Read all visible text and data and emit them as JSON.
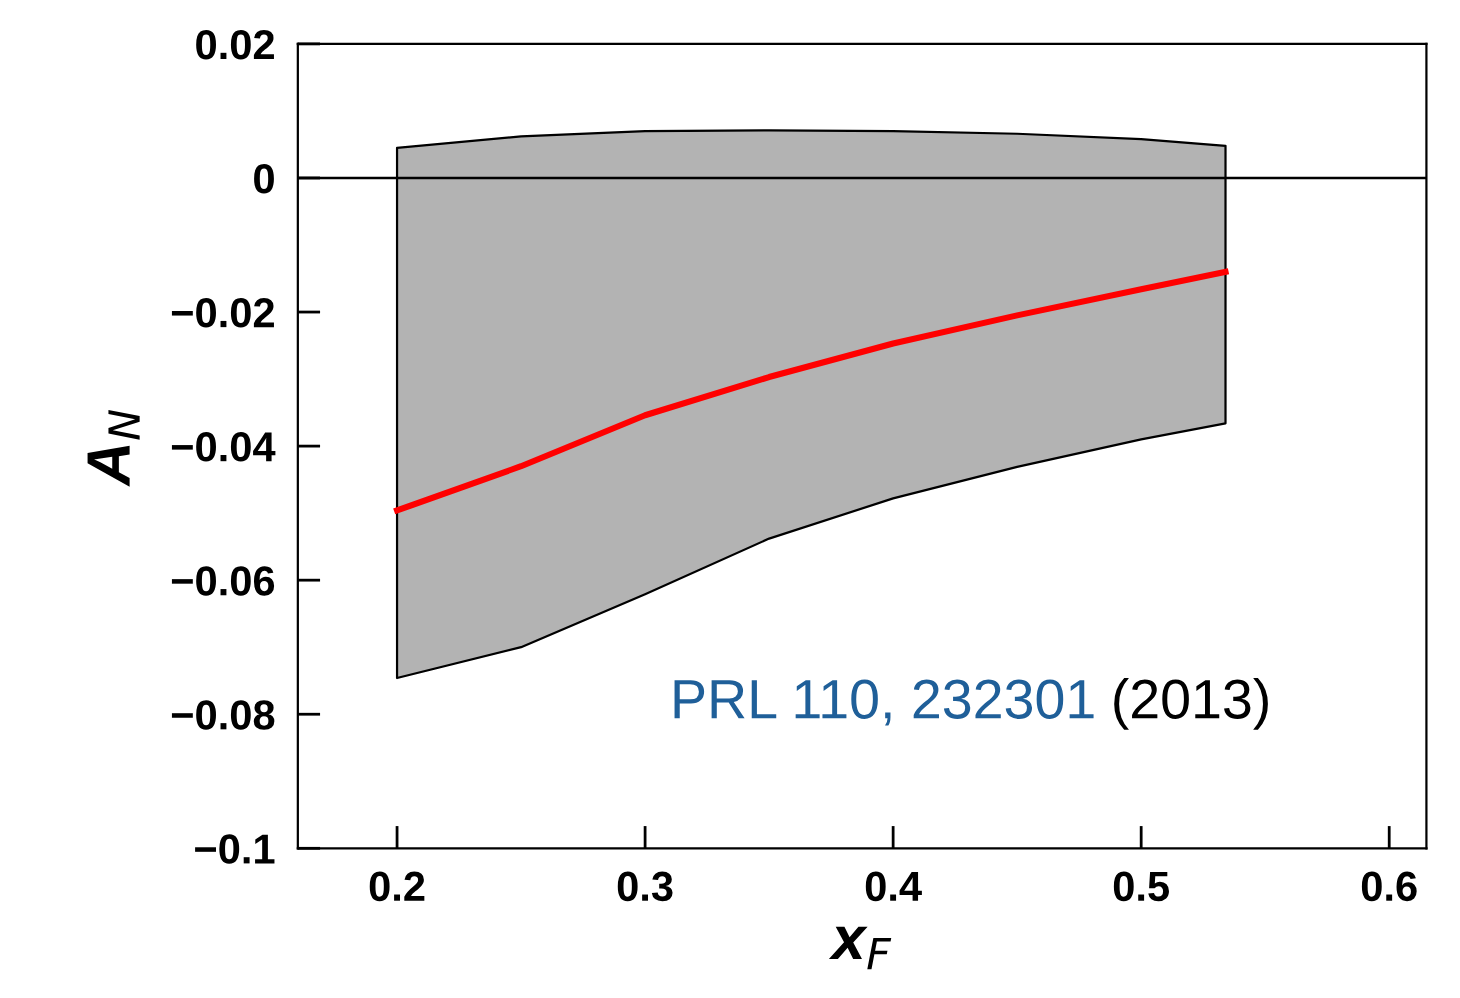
{
  "chart_data": {
    "type": "line",
    "xlabel": "x$_{F}$",
    "ylabel": "A$_{N}$",
    "x": [
      0.2,
      0.25,
      0.3,
      0.35,
      0.4,
      0.45,
      0.5,
      0.534
    ],
    "series": [
      {
        "color": "#ff0000",
        "values": [
          -0.0496,
          -0.043,
          -0.0354,
          -0.0297,
          -0.0247,
          -0.0205,
          -0.0166,
          -0.014
        ],
        "lower": [
          -0.0746,
          -0.07,
          -0.0621,
          -0.0538,
          -0.0478,
          -0.0431,
          -0.039,
          -0.0366
        ],
        "upper": [
          0.0045,
          0.0062,
          0.007,
          0.0071,
          0.007,
          0.0066,
          0.0058,
          0.0048
        ]
      }
    ],
    "xlim": [
      0.16,
      0.615
    ],
    "ylim": [
      -0.1,
      0.02
    ],
    "xticks": [
      0.2,
      0.3,
      0.4,
      0.5,
      0.6
    ],
    "yticks": [
      {
        "value": -0.1,
        "label": "−0.1"
      },
      {
        "value": -0.08,
        "label": "−0.08"
      },
      {
        "value": -0.06,
        "label": "−0.06"
      },
      {
        "value": -0.04,
        "label": "−0.04"
      },
      {
        "value": -0.02,
        "label": "−0.02"
      },
      0,
      0.02
    ],
    "ref_lines": [
      {
        "axis": "y",
        "value": 0,
        "color": "#000000"
      }
    ],
    "annotations": [
      "PRL 110, 232301",
      "(2013)"
    ],
    "grid": false,
    "legend": false,
    "marker": "none",
    "line_style": "solid"
  }
}
